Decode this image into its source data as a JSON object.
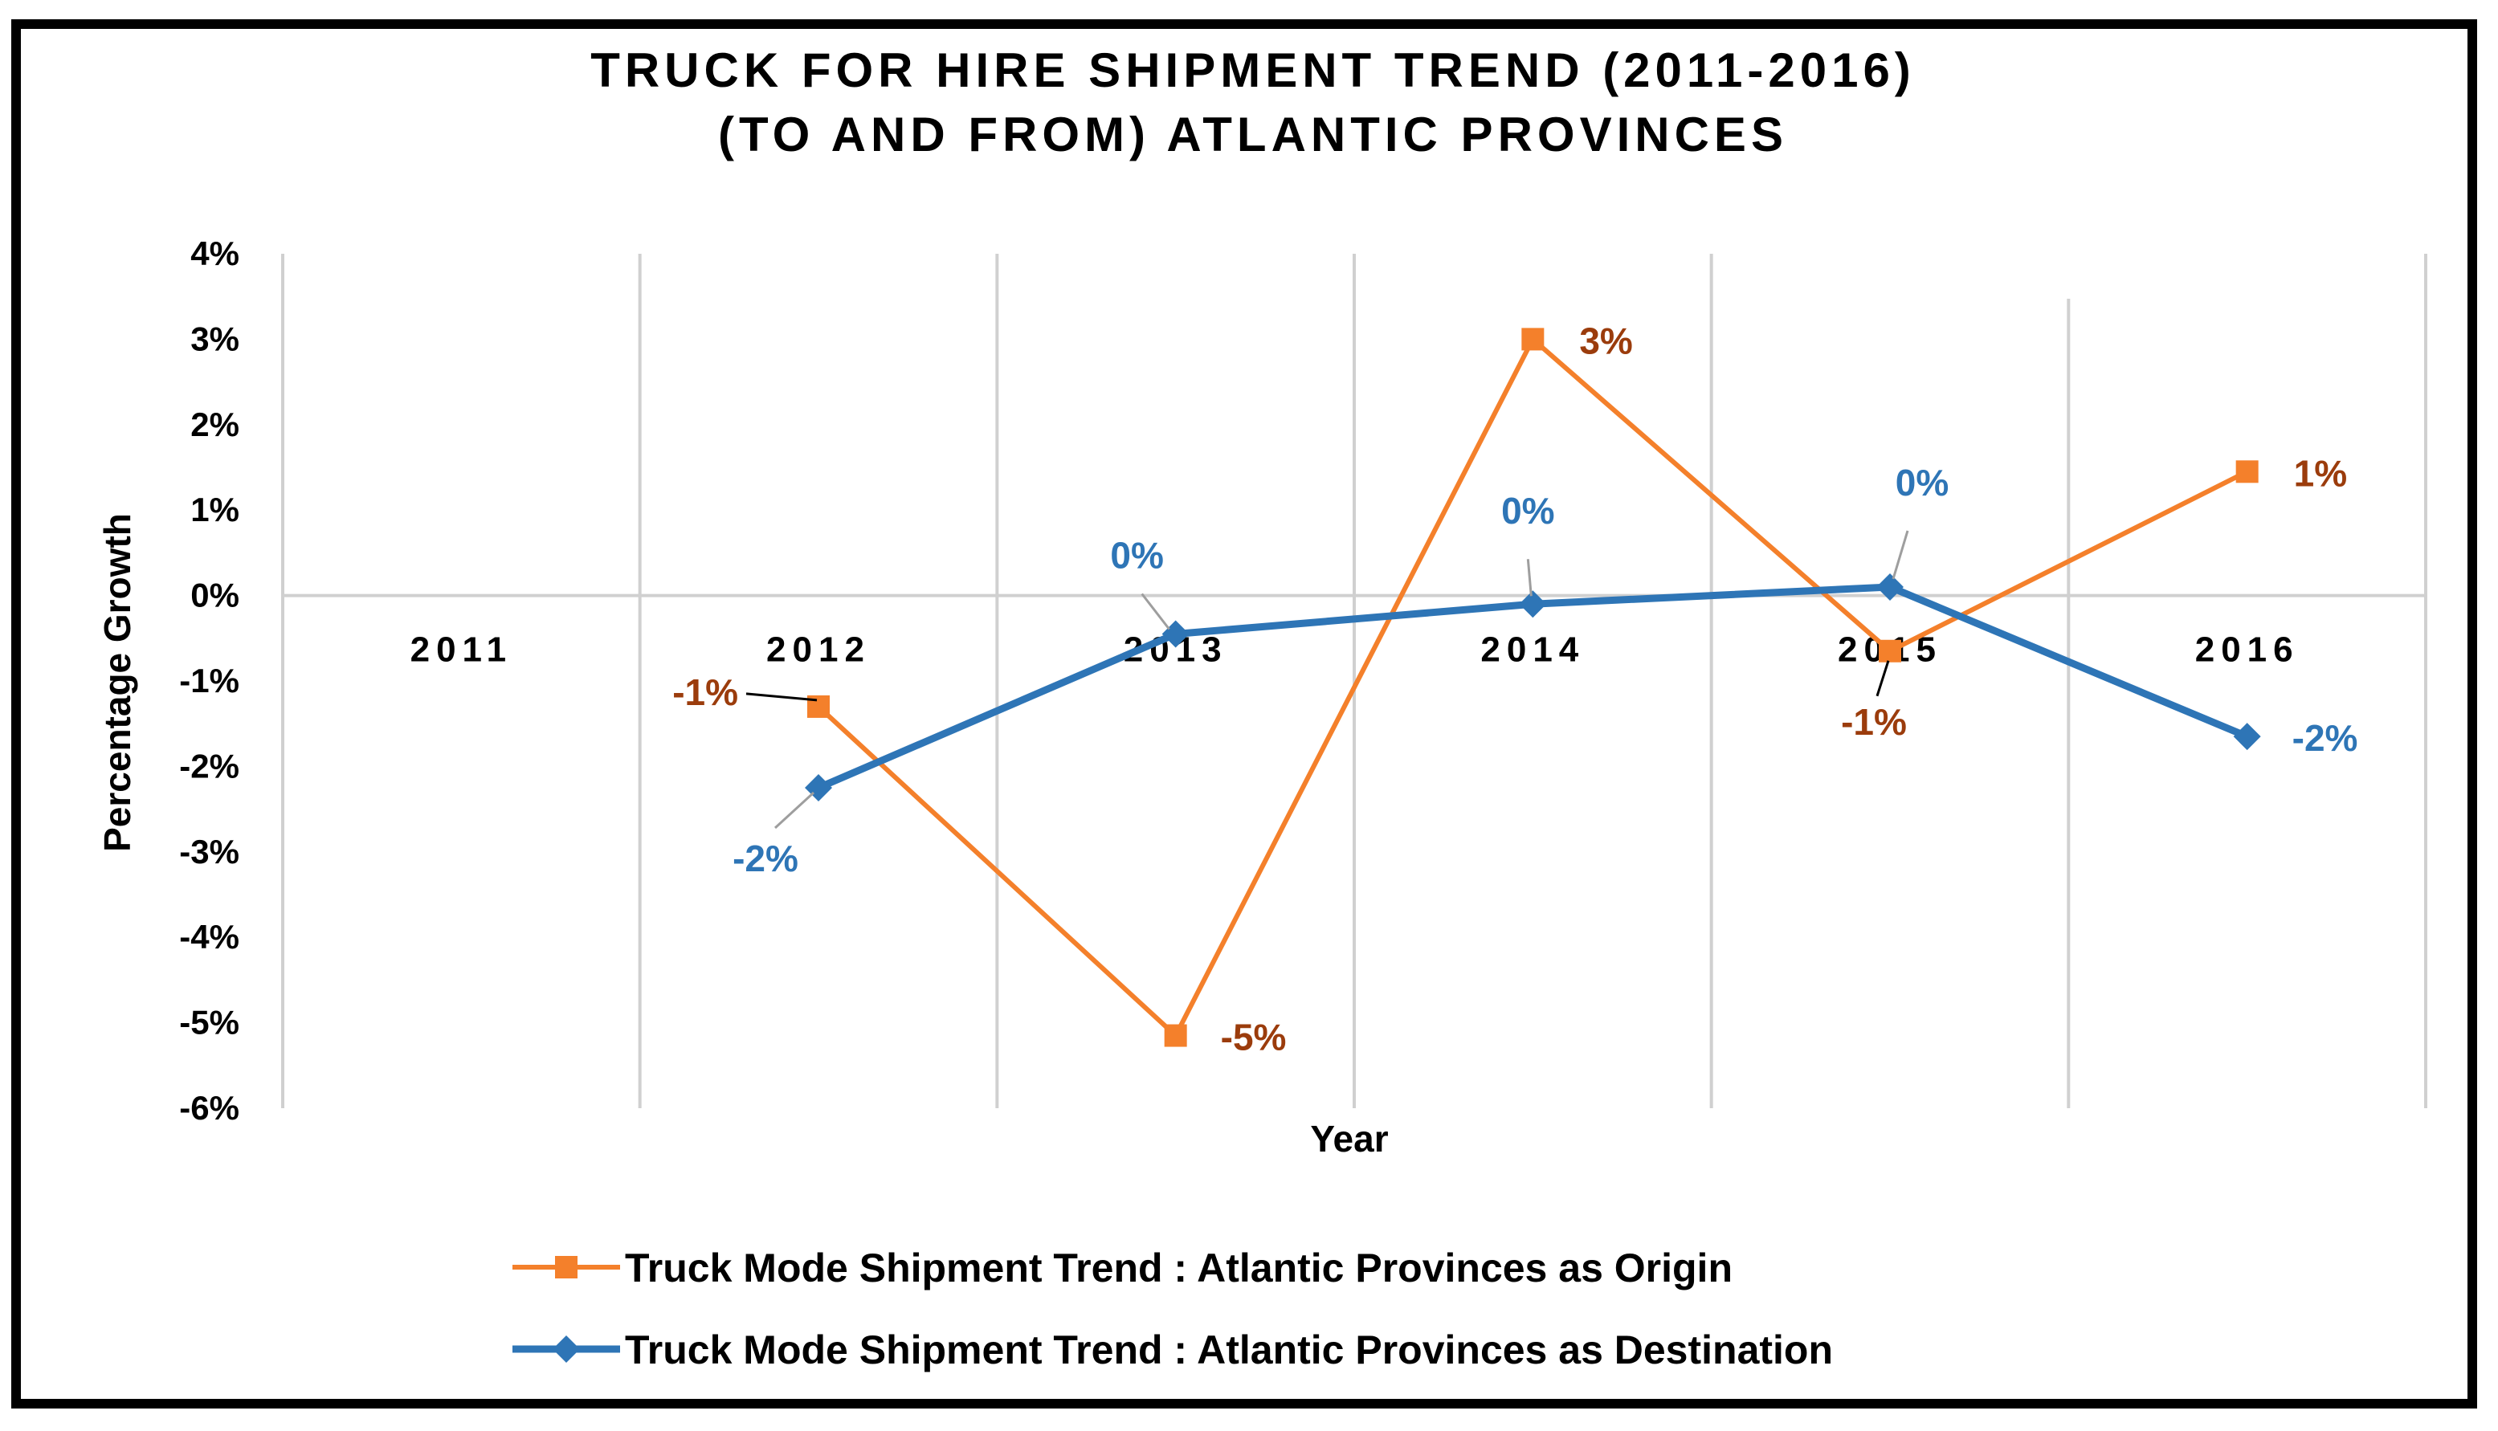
{
  "chart_data": {
    "type": "line",
    "title": [
      "TRUCK FOR HIRE SHIPMENT TREND (2011-2016)",
      "(TO AND FROM) ATLANTIC PROVINCES"
    ],
    "xlabel": "Year",
    "ylabel": "Percentage Growth",
    "categories": [
      "2011",
      "2012",
      "2013",
      "2014",
      "2015",
      "2016"
    ],
    "ylim": [
      -6,
      4
    ],
    "yticks": [
      4,
      3,
      2,
      1,
      0,
      -1,
      -2,
      -3,
      -4,
      -5,
      -6
    ],
    "ytick_labels": [
      "4%",
      "3%",
      "2%",
      "1%",
      "0%",
      "-1%",
      "-2%",
      "-3%",
      "-4%",
      "-5%",
      "-6%"
    ],
    "grid": true,
    "legend_position": "bottom",
    "series": [
      {
        "name": "Truck Mode Shipment Trend : Atlantic Provinces as Origin",
        "color": "#f4802b",
        "marker": "square",
        "x": [
          2012,
          2013,
          2014,
          2015,
          2016
        ],
        "values": [
          -1.3,
          -5.15,
          3.0,
          -0.65,
          1.45
        ],
        "labels": [
          "-1%",
          "-5%",
          "3%",
          "-1%",
          "1%"
        ]
      },
      {
        "name": "Truck Mode Shipment Trend : Atlantic Provinces as Destination",
        "color": "#2e75b6",
        "marker": "diamond",
        "x": [
          2012,
          2013,
          2014,
          2015,
          2016
        ],
        "values": [
          -2.25,
          -0.45,
          -0.1,
          0.1,
          -1.65
        ],
        "labels": [
          "-2%",
          "0%",
          "0%",
          "0%",
          "-2%"
        ]
      }
    ]
  }
}
